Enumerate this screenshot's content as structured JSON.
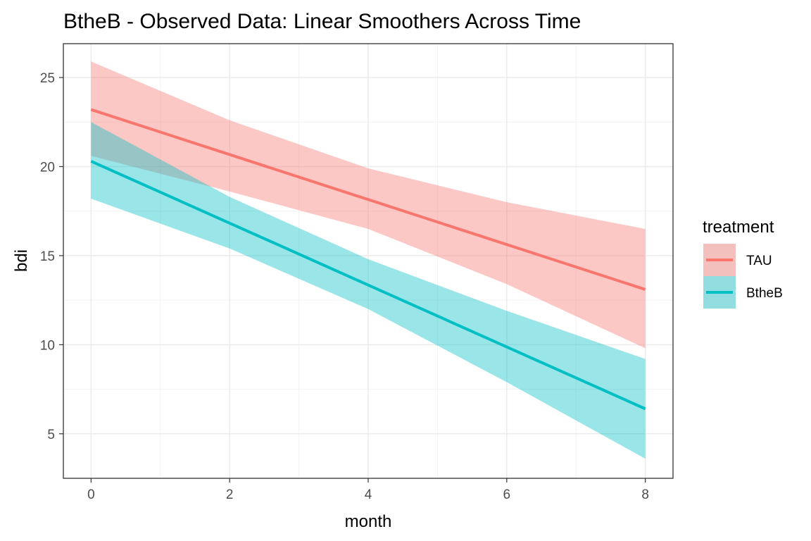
{
  "chart_data": {
    "type": "line",
    "title": "BtheB - Observed Data: Linear Smoothers Across Time",
    "xlabel": "month",
    "ylabel": "bdi",
    "xlim": [
      -0.4,
      8.4
    ],
    "ylim": [
      2.5,
      26.9
    ],
    "x_ticks": [
      0,
      2,
      4,
      6,
      8
    ],
    "y_ticks": [
      5,
      10,
      15,
      20,
      25
    ],
    "x_minor": [
      1,
      3,
      5,
      7
    ],
    "y_minor": [
      7.5,
      12.5,
      17.5,
      22.5
    ],
    "grid": true,
    "legend": {
      "title": "treatment",
      "position": "right"
    },
    "series": [
      {
        "name": "TAU",
        "color": "#F8766D",
        "x": [
          0,
          8
        ],
        "y": [
          23.2,
          13.1
        ],
        "lower": [
          20.6,
          9.8
        ],
        "upper": [
          25.9,
          16.5
        ],
        "band_x": [
          0,
          2,
          4,
          6,
          8
        ],
        "band_lower": [
          20.6,
          18.6,
          16.5,
          13.4,
          9.8
        ],
        "band_upper": [
          25.9,
          22.6,
          19.9,
          18.0,
          16.5
        ]
      },
      {
        "name": "BtheB",
        "color": "#00BFC4",
        "x": [
          0,
          8
        ],
        "y": [
          20.3,
          6.4
        ],
        "band_x": [
          0,
          2,
          4,
          6,
          8
        ],
        "band_lower": [
          18.2,
          15.4,
          12.0,
          7.9,
          3.6
        ],
        "band_upper": [
          22.5,
          18.3,
          14.8,
          11.9,
          9.2
        ]
      }
    ]
  }
}
